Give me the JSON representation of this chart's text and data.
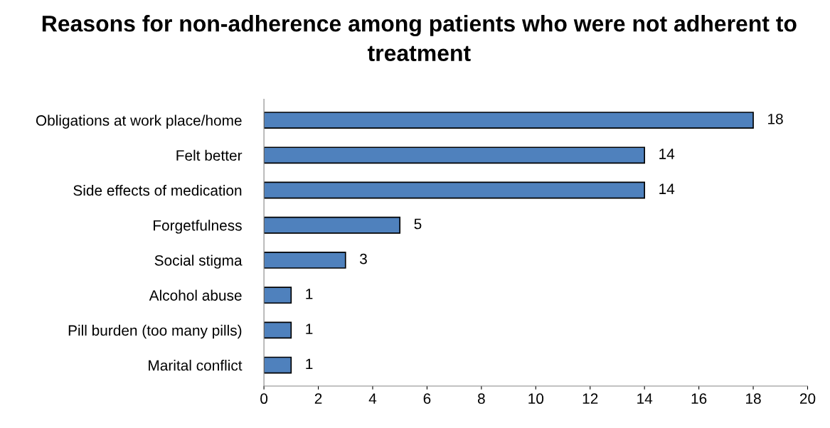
{
  "chart_data": {
    "type": "bar",
    "orientation": "horizontal",
    "title": "Reasons for non-adherence among patients who were not adherent to treatment",
    "categories": [
      "Obligations at work place/home",
      "Felt better",
      "Side effects of medication",
      "Forgetfulness",
      "Social stigma",
      "Alcohol abuse",
      "Pill burden (too many pills)",
      "Marital conflict"
    ],
    "values": [
      18,
      14,
      14,
      5,
      3,
      1,
      1,
      1
    ],
    "color": "#4f81bd",
    "xlim": [
      0,
      20
    ],
    "xticks": [
      0,
      2,
      4,
      6,
      8,
      10,
      12,
      14,
      16,
      18,
      20
    ],
    "data_labels": true
  }
}
